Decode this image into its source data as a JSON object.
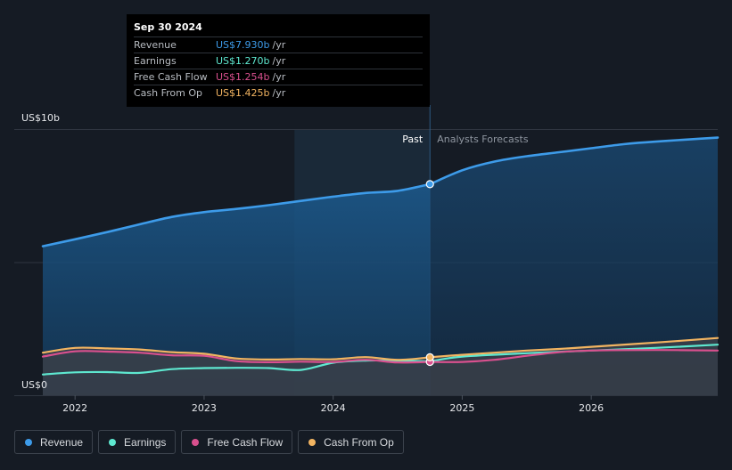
{
  "tooltip": {
    "date": "Sep 30 2024",
    "rows": [
      {
        "label": "Revenue",
        "value": "US$7.930b",
        "unit": "/yr",
        "color": "#3d9be9"
      },
      {
        "label": "Earnings",
        "value": "US$1.270b",
        "unit": "/yr",
        "color": "#5ee8d0"
      },
      {
        "label": "Free Cash Flow",
        "value": "US$1.254b",
        "unit": "/yr",
        "color": "#d9508e"
      },
      {
        "label": "Cash From Op",
        "value": "US$1.425b",
        "unit": "/yr",
        "color": "#f2b461"
      }
    ]
  },
  "legend": [
    {
      "label": "Revenue",
      "color": "#3d9be9"
    },
    {
      "label": "Earnings",
      "color": "#5ee8d0"
    },
    {
      "label": "Free Cash Flow",
      "color": "#d9508e"
    },
    {
      "label": "Cash From Op",
      "color": "#f2b461"
    }
  ],
  "chart_data": {
    "type": "line",
    "title": "",
    "xlabel": "",
    "ylabel": "",
    "ylim": [
      0,
      10
    ],
    "xlim": [
      2021.75,
      2026.98
    ],
    "y_tick_labels": [
      {
        "label": "US$10b",
        "value": 10
      },
      {
        "label": "US$0",
        "value": 0
      }
    ],
    "x_tick_labels": [
      {
        "label": "2022",
        "value": 2022
      },
      {
        "label": "2023",
        "value": 2023
      },
      {
        "label": "2024",
        "value": 2024
      },
      {
        "label": "2025",
        "value": 2025
      },
      {
        "label": "2026",
        "value": 2026
      }
    ],
    "divider_x": 2024.75,
    "past_label": "Past",
    "forecast_label": "Analysts Forecasts",
    "highlight_band": [
      2023.7,
      2024.75
    ],
    "series": [
      {
        "name": "Revenue",
        "color": "#3d9be9",
        "fill": true,
        "x": [
          2021.75,
          2022.0,
          2022.25,
          2022.5,
          2022.75,
          2023.0,
          2023.25,
          2023.5,
          2023.75,
          2024.0,
          2024.25,
          2024.5,
          2024.75
        ],
        "values": [
          5.6,
          5.86,
          6.13,
          6.42,
          6.7,
          6.88,
          7.0,
          7.14,
          7.3,
          7.46,
          7.6,
          7.68,
          7.93
        ],
        "forecast_x": [
          2024.75,
          2025.0,
          2025.25,
          2025.5,
          2025.75,
          2026.0,
          2026.25,
          2026.5,
          2026.75,
          2026.98
        ],
        "forecast_values": [
          7.93,
          8.45,
          8.78,
          8.98,
          9.13,
          9.28,
          9.43,
          9.53,
          9.61,
          9.68
        ]
      },
      {
        "name": "Earnings",
        "color": "#5ee8d0",
        "fill": false,
        "x": [
          2021.75,
          2022.0,
          2022.25,
          2022.5,
          2022.75,
          2023.0,
          2023.25,
          2023.5,
          2023.75,
          2024.0,
          2024.25,
          2024.5,
          2024.75
        ],
        "values": [
          0.78,
          0.86,
          0.87,
          0.84,
          0.98,
          1.02,
          1.03,
          1.02,
          0.95,
          1.22,
          1.3,
          1.3,
          1.27
        ],
        "forecast_x": [
          2024.75,
          2025.0,
          2025.5,
          2026.0,
          2026.5,
          2026.98
        ],
        "forecast_values": [
          1.27,
          1.45,
          1.58,
          1.68,
          1.78,
          1.9
        ]
      },
      {
        "name": "Free Cash Flow",
        "color": "#d9508e",
        "fill": false,
        "x": [
          2021.75,
          2022.0,
          2022.25,
          2022.5,
          2022.75,
          2023.0,
          2023.25,
          2023.5,
          2023.75,
          2024.0,
          2024.25,
          2024.5,
          2024.75
        ],
        "values": [
          1.45,
          1.65,
          1.64,
          1.6,
          1.5,
          1.48,
          1.28,
          1.24,
          1.26,
          1.25,
          1.33,
          1.23,
          1.254
        ],
        "forecast_x": [
          2024.75,
          2025.0,
          2025.25,
          2025.5,
          2025.75,
          2026.0,
          2026.5,
          2026.98
        ],
        "forecast_values": [
          1.254,
          1.25,
          1.33,
          1.48,
          1.62,
          1.68,
          1.7,
          1.68
        ]
      },
      {
        "name": "Cash From Op",
        "color": "#f2b461",
        "fill": false,
        "x": [
          2021.75,
          2022.0,
          2022.25,
          2022.5,
          2022.75,
          2023.0,
          2023.25,
          2023.5,
          2023.75,
          2024.0,
          2024.25,
          2024.5,
          2024.75
        ],
        "values": [
          1.6,
          1.78,
          1.76,
          1.72,
          1.62,
          1.56,
          1.38,
          1.34,
          1.36,
          1.35,
          1.43,
          1.33,
          1.425
        ],
        "forecast_x": [
          2024.75,
          2025.0,
          2025.25,
          2025.5,
          2025.75,
          2026.0,
          2026.5,
          2026.98
        ],
        "forecast_values": [
          1.425,
          1.52,
          1.6,
          1.68,
          1.74,
          1.82,
          1.98,
          2.15
        ]
      }
    ]
  }
}
